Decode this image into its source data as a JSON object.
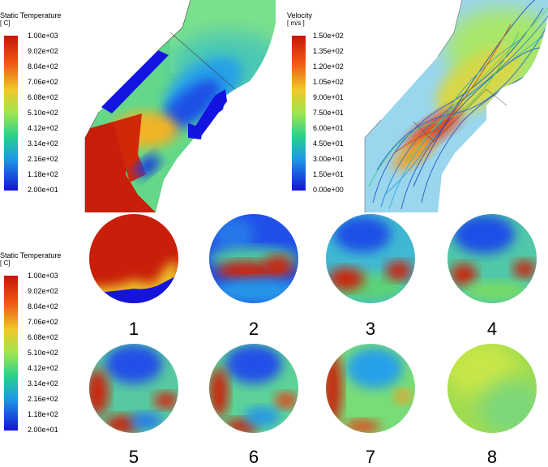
{
  "legends": [
    {
      "id": "temp-top",
      "title": "Static Temperature",
      "unit": "[ C]",
      "ticks": [
        "1.00e+03",
        "9.02e+02",
        "8.04e+02",
        "7.06e+02",
        "6.08e+02",
        "5.10e+02",
        "4.12e+02",
        "3.14e+02",
        "2.16e+02",
        "1.18e+02",
        "2.00e+01"
      ]
    },
    {
      "id": "velocity",
      "title": "Velocity",
      "unit": "[ m/s ]",
      "ticks": [
        "1.50e+02",
        "1.35e+02",
        "1.20e+02",
        "1.05e+02",
        "9.00e+01",
        "7.50e+01",
        "6.00e+01",
        "4.50e+01",
        "3.00e+01",
        "1.50e+01",
        "0.00e+00"
      ]
    },
    {
      "id": "temp-bottom",
      "title": "Static Temperature",
      "unit": "[ C]",
      "ticks": [
        "1.00e+03",
        "9.02e+02",
        "8.04e+02",
        "7.06e+02",
        "6.08e+02",
        "5.10e+02",
        "4.12e+02",
        "3.14e+02",
        "2.16e+02",
        "1.18e+02",
        "2.00e+01"
      ]
    }
  ],
  "sections": [
    "1",
    "2",
    "3",
    "4",
    "5",
    "6",
    "7",
    "8"
  ],
  "colors": {
    "max": "#c81e0a",
    "orange": "#f07814",
    "yellow": "#d9e83c",
    "green": "#5ed66e",
    "cyan": "#28c8c8",
    "blue": "#2a6ee6",
    "min": "#1414dc"
  }
}
